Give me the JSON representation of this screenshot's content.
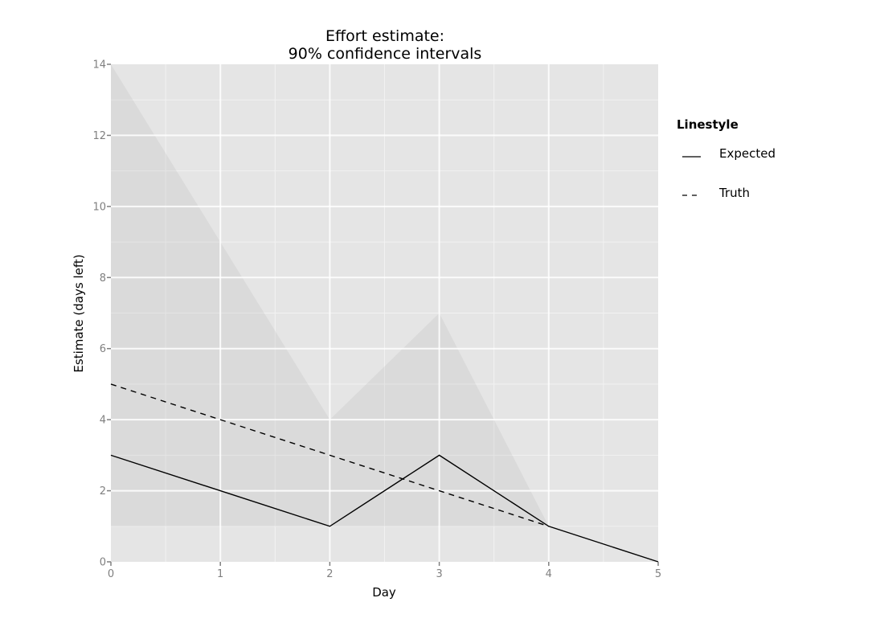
{
  "chart_data": {
    "type": "line",
    "title": "Effort estimate:\n90% confidence intervals",
    "title_lines": [
      "Effort estimate:",
      "90% confidence intervals"
    ],
    "xlabel": "Day",
    "ylabel": "Estimate (days left)",
    "xlim": [
      0,
      5
    ],
    "ylim": [
      0,
      14
    ],
    "x_ticks": [
      0,
      1,
      2,
      3,
      4,
      5
    ],
    "y_ticks": [
      0,
      2,
      4,
      6,
      8,
      10,
      12,
      14
    ],
    "grid": true,
    "legend_position": "right",
    "legend_title": "Linestyle",
    "series": [
      {
        "name": "Expected",
        "linestyle": "solid",
        "x": [
          0,
          1,
          2,
          3,
          4,
          5
        ],
        "values": [
          3,
          2,
          1,
          3,
          1,
          0
        ]
      },
      {
        "name": "Truth",
        "linestyle": "dashed",
        "x": [
          0,
          1,
          2,
          3,
          4
        ],
        "values": [
          5,
          4,
          3,
          2,
          1
        ]
      }
    ],
    "ribbon": {
      "name": "90% confidence interval",
      "x": [
        0,
        1,
        2,
        3,
        4
      ],
      "lower": [
        1,
        1,
        1,
        1,
        1
      ],
      "upper": [
        14,
        9,
        4,
        7,
        1
      ]
    }
  },
  "colors": {
    "panel_bg": "#e5e5e5",
    "grid_major": "#ffffff",
    "grid_minor": "#f2f2f2",
    "ribbon": "#b0b0b0",
    "line": "#000000",
    "tick_text": "#808080"
  }
}
